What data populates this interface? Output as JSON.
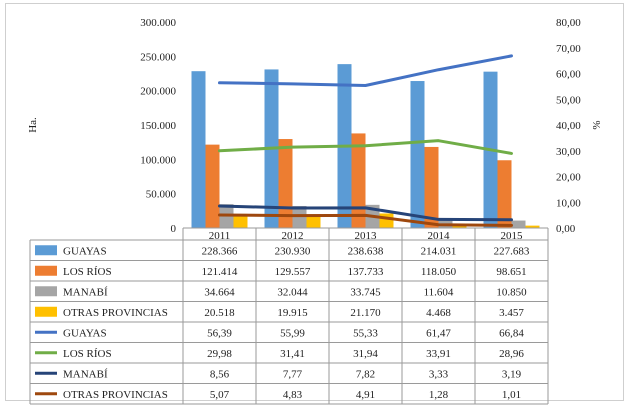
{
  "chart_data": {
    "type": "bar",
    "categories": [
      "2011",
      "2012",
      "2013",
      "2014",
      "2015"
    ],
    "ylabel": "Ha.",
    "y2label": "%",
    "ylim": [
      0,
      300000
    ],
    "y2lim": [
      0,
      80
    ],
    "yticks": [
      "0",
      "50.000",
      "100.000",
      "150.000",
      "200.000",
      "250.000",
      "300.000"
    ],
    "y2ticks": [
      "0,00",
      "10,00",
      "20,00",
      "30,00",
      "40,00",
      "50,00",
      "60,00",
      "70,00",
      "80,00"
    ],
    "grid": false,
    "legend": "data-table-below",
    "bar_series": [
      {
        "name": "GUAYAS",
        "color": "#5b9bd5",
        "values": [
          228366,
          230930,
          238638,
          214031,
          227683
        ],
        "labels": [
          "228.366",
          "230.930",
          "238.638",
          "214.031",
          "227.683"
        ]
      },
      {
        "name": "LOS RÍOS",
        "color": "#ed7d31",
        "values": [
          121414,
          129557,
          137733,
          118050,
          98651
        ],
        "labels": [
          "121.414",
          "129.557",
          "137.733",
          "118.050",
          "98.651"
        ]
      },
      {
        "name": "MANABÍ",
        "color": "#a5a5a5",
        "values": [
          34664,
          32044,
          33745,
          11604,
          10850
        ],
        "labels": [
          "34.664",
          "32.044",
          "33.745",
          "11.604",
          "10.850"
        ]
      },
      {
        "name": "OTRAS PROVINCIAS",
        "color": "#ffc000",
        "values": [
          20518,
          19915,
          21170,
          4468,
          3457
        ],
        "labels": [
          "20.518",
          "19.915",
          "21.170",
          "4.468",
          "3.457"
        ]
      }
    ],
    "line_series": [
      {
        "name": "GUAYAS",
        "color": "#4472c4",
        "values": [
          56.39,
          55.99,
          55.33,
          61.47,
          66.84
        ],
        "labels": [
          "56,39",
          "55,99",
          "55,33",
          "61,47",
          "66,84"
        ]
      },
      {
        "name": "LOS RÍOS",
        "color": "#70ad47",
        "values": [
          29.98,
          31.41,
          31.94,
          33.91,
          28.96
        ],
        "labels": [
          "29,98",
          "31,41",
          "31,94",
          "33,91",
          "28,96"
        ]
      },
      {
        "name": "MANABÍ",
        "color": "#264478",
        "values": [
          8.56,
          7.77,
          7.82,
          3.33,
          3.19
        ],
        "labels": [
          "8,56",
          "7,77",
          "7,82",
          "3,33",
          "3,19"
        ]
      },
      {
        "name": "OTRAS PROVINCIAS",
        "color": "#9e480e",
        "values": [
          5.07,
          4.83,
          4.91,
          1.28,
          1.01
        ],
        "labels": [
          "5,07",
          "4,83",
          "4,91",
          "1,28",
          "1,01"
        ]
      }
    ]
  }
}
